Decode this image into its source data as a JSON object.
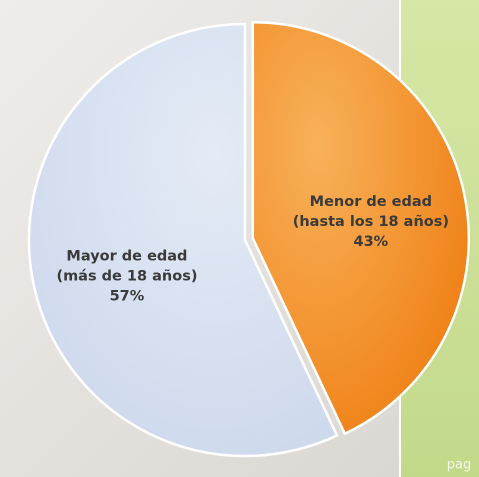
{
  "chart_data": {
    "type": "pie",
    "categories": [
      [
        "Menor de edad",
        "(hasta los 18 años)"
      ],
      [
        "Mayor de edad",
        "(más de 18 años)"
      ]
    ],
    "values": [
      43,
      57
    ],
    "value_labels": [
      "43%",
      "57%"
    ],
    "colors": [
      "#f28a1e",
      "#d5dff0"
    ],
    "start_angle": 90,
    "direction": "clockwise",
    "explode": [
      1,
      0
    ]
  },
  "page_text": "pag"
}
